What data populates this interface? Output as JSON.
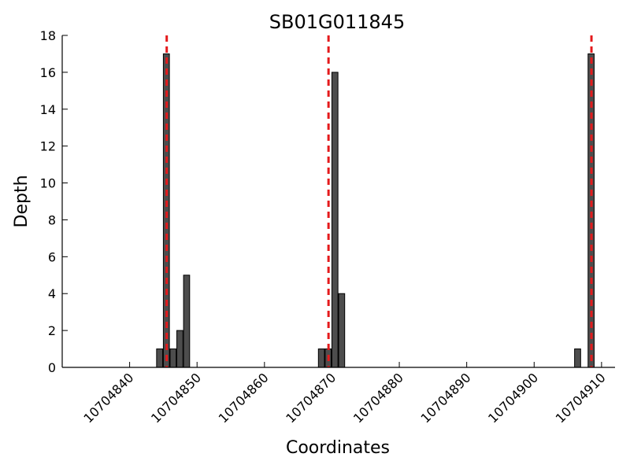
{
  "chart_data": {
    "type": "bar",
    "title": "SB01G011845",
    "xlabel": "Coordinates",
    "ylabel": "Depth",
    "xlim": [
      10704830,
      10704912
    ],
    "ylim": [
      0,
      18
    ],
    "xticks": [
      10704840,
      10704850,
      10704860,
      10704870,
      10704880,
      10704890,
      10704900,
      10704910
    ],
    "yticks": [
      0,
      2,
      4,
      6,
      8,
      10,
      12,
      14,
      16,
      18
    ],
    "grid": false,
    "legend": "none",
    "colors": {
      "bar_fill": "#4d4d4d",
      "bar_edge": "#000000",
      "marker_line": "#e41a1c"
    },
    "bars": [
      {
        "x": 10704844,
        "y": 1
      },
      {
        "x": 10704845,
        "y": 17
      },
      {
        "x": 10704846,
        "y": 1
      },
      {
        "x": 10704847,
        "y": 2
      },
      {
        "x": 10704848,
        "y": 5
      },
      {
        "x": 10704868,
        "y": 1
      },
      {
        "x": 10704869,
        "y": 1
      },
      {
        "x": 10704870,
        "y": 16
      },
      {
        "x": 10704871,
        "y": 4
      },
      {
        "x": 10704906,
        "y": 1
      },
      {
        "x": 10704908,
        "y": 17
      }
    ],
    "marker_lines": [
      10704845.5,
      10704869.5,
      10704908.5
    ]
  }
}
